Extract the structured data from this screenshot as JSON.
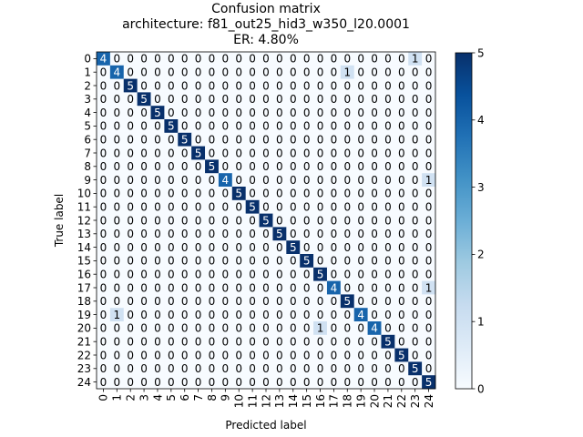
{
  "chart_data": {
    "type": "heatmap",
    "title_lines": [
      "Confusion matrix",
      "architecture: f81_out25_hid3_w350_l20.0001",
      "ER: 4.80%"
    ],
    "xlabel": "Predicted label",
    "ylabel": "True label",
    "labels": [
      "0",
      "1",
      "2",
      "3",
      "4",
      "5",
      "6",
      "7",
      "8",
      "9",
      "10",
      "11",
      "12",
      "13",
      "14",
      "15",
      "16",
      "17",
      "18",
      "19",
      "20",
      "21",
      "22",
      "23",
      "24"
    ],
    "matrix": [
      [
        4,
        0,
        0,
        0,
        0,
        0,
        0,
        0,
        0,
        0,
        0,
        0,
        0,
        0,
        0,
        0,
        0,
        0,
        0,
        0,
        0,
        0,
        0,
        1,
        0
      ],
      [
        0,
        4,
        0,
        0,
        0,
        0,
        0,
        0,
        0,
        0,
        0,
        0,
        0,
        0,
        0,
        0,
        0,
        0,
        1,
        0,
        0,
        0,
        0,
        0,
        0
      ],
      [
        0,
        0,
        5,
        0,
        0,
        0,
        0,
        0,
        0,
        0,
        0,
        0,
        0,
        0,
        0,
        0,
        0,
        0,
        0,
        0,
        0,
        0,
        0,
        0,
        0
      ],
      [
        0,
        0,
        0,
        5,
        0,
        0,
        0,
        0,
        0,
        0,
        0,
        0,
        0,
        0,
        0,
        0,
        0,
        0,
        0,
        0,
        0,
        0,
        0,
        0,
        0
      ],
      [
        0,
        0,
        0,
        0,
        5,
        0,
        0,
        0,
        0,
        0,
        0,
        0,
        0,
        0,
        0,
        0,
        0,
        0,
        0,
        0,
        0,
        0,
        0,
        0,
        0
      ],
      [
        0,
        0,
        0,
        0,
        0,
        5,
        0,
        0,
        0,
        0,
        0,
        0,
        0,
        0,
        0,
        0,
        0,
        0,
        0,
        0,
        0,
        0,
        0,
        0,
        0
      ],
      [
        0,
        0,
        0,
        0,
        0,
        0,
        5,
        0,
        0,
        0,
        0,
        0,
        0,
        0,
        0,
        0,
        0,
        0,
        0,
        0,
        0,
        0,
        0,
        0,
        0
      ],
      [
        0,
        0,
        0,
        0,
        0,
        0,
        0,
        5,
        0,
        0,
        0,
        0,
        0,
        0,
        0,
        0,
        0,
        0,
        0,
        0,
        0,
        0,
        0,
        0,
        0
      ],
      [
        0,
        0,
        0,
        0,
        0,
        0,
        0,
        0,
        5,
        0,
        0,
        0,
        0,
        0,
        0,
        0,
        0,
        0,
        0,
        0,
        0,
        0,
        0,
        0,
        0
      ],
      [
        0,
        0,
        0,
        0,
        0,
        0,
        0,
        0,
        0,
        4,
        0,
        0,
        0,
        0,
        0,
        0,
        0,
        0,
        0,
        0,
        0,
        0,
        0,
        0,
        1
      ],
      [
        0,
        0,
        0,
        0,
        0,
        0,
        0,
        0,
        0,
        0,
        5,
        0,
        0,
        0,
        0,
        0,
        0,
        0,
        0,
        0,
        0,
        0,
        0,
        0,
        0
      ],
      [
        0,
        0,
        0,
        0,
        0,
        0,
        0,
        0,
        0,
        0,
        0,
        5,
        0,
        0,
        0,
        0,
        0,
        0,
        0,
        0,
        0,
        0,
        0,
        0,
        0
      ],
      [
        0,
        0,
        0,
        0,
        0,
        0,
        0,
        0,
        0,
        0,
        0,
        0,
        5,
        0,
        0,
        0,
        0,
        0,
        0,
        0,
        0,
        0,
        0,
        0,
        0
      ],
      [
        0,
        0,
        0,
        0,
        0,
        0,
        0,
        0,
        0,
        0,
        0,
        0,
        0,
        5,
        0,
        0,
        0,
        0,
        0,
        0,
        0,
        0,
        0,
        0,
        0
      ],
      [
        0,
        0,
        0,
        0,
        0,
        0,
        0,
        0,
        0,
        0,
        0,
        0,
        0,
        0,
        5,
        0,
        0,
        0,
        0,
        0,
        0,
        0,
        0,
        0,
        0
      ],
      [
        0,
        0,
        0,
        0,
        0,
        0,
        0,
        0,
        0,
        0,
        0,
        0,
        0,
        0,
        0,
        5,
        0,
        0,
        0,
        0,
        0,
        0,
        0,
        0,
        0
      ],
      [
        0,
        0,
        0,
        0,
        0,
        0,
        0,
        0,
        0,
        0,
        0,
        0,
        0,
        0,
        0,
        0,
        5,
        0,
        0,
        0,
        0,
        0,
        0,
        0,
        0
      ],
      [
        0,
        0,
        0,
        0,
        0,
        0,
        0,
        0,
        0,
        0,
        0,
        0,
        0,
        0,
        0,
        0,
        0,
        4,
        0,
        0,
        0,
        0,
        0,
        0,
        1
      ],
      [
        0,
        0,
        0,
        0,
        0,
        0,
        0,
        0,
        0,
        0,
        0,
        0,
        0,
        0,
        0,
        0,
        0,
        0,
        5,
        0,
        0,
        0,
        0,
        0,
        0
      ],
      [
        0,
        1,
        0,
        0,
        0,
        0,
        0,
        0,
        0,
        0,
        0,
        0,
        0,
        0,
        0,
        0,
        0,
        0,
        0,
        4,
        0,
        0,
        0,
        0,
        0
      ],
      [
        0,
        0,
        0,
        0,
        0,
        0,
        0,
        0,
        0,
        0,
        0,
        0,
        0,
        0,
        0,
        0,
        1,
        0,
        0,
        0,
        4,
        0,
        0,
        0,
        0
      ],
      [
        0,
        0,
        0,
        0,
        0,
        0,
        0,
        0,
        0,
        0,
        0,
        0,
        0,
        0,
        0,
        0,
        0,
        0,
        0,
        0,
        0,
        5,
        0,
        0,
        0
      ],
      [
        0,
        0,
        0,
        0,
        0,
        0,
        0,
        0,
        0,
        0,
        0,
        0,
        0,
        0,
        0,
        0,
        0,
        0,
        0,
        0,
        0,
        0,
        5,
        0,
        0
      ],
      [
        0,
        0,
        0,
        0,
        0,
        0,
        0,
        0,
        0,
        0,
        0,
        0,
        0,
        0,
        0,
        0,
        0,
        0,
        0,
        0,
        0,
        0,
        0,
        5,
        0
      ],
      [
        0,
        0,
        0,
        0,
        0,
        0,
        0,
        0,
        0,
        0,
        0,
        0,
        0,
        0,
        0,
        0,
        0,
        0,
        0,
        0,
        0,
        0,
        0,
        0,
        5
      ]
    ],
    "vmin": 0,
    "vmax": 5,
    "colormap": "Blues",
    "colorbar_ticks": [
      "0",
      "1",
      "2",
      "3",
      "4",
      "5"
    ],
    "grid": false
  }
}
